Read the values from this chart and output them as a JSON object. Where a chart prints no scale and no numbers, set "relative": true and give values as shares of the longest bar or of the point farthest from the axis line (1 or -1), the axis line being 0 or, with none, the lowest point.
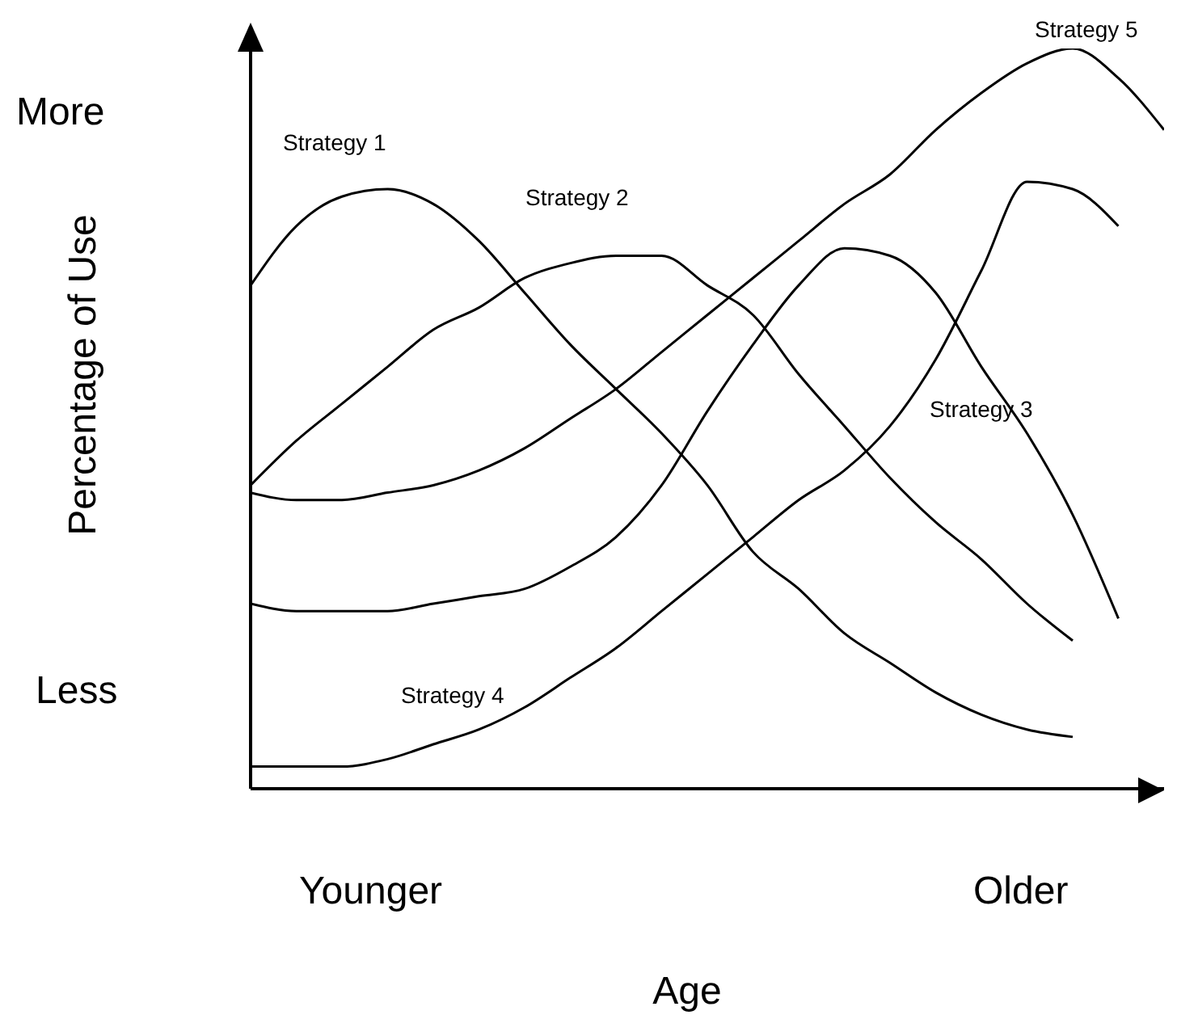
{
  "chart_data": {
    "type": "line",
    "relative": true,
    "xlabel": "Age",
    "ylabel": "Percentage of Use",
    "annotations": [
      "More",
      "Less",
      "Younger",
      "Older"
    ],
    "categories": [
      null,
      null,
      null,
      null,
      null,
      null,
      null,
      null,
      null,
      null,
      null,
      null,
      null,
      null,
      null,
      null,
      null,
      null,
      null,
      null,
      null
    ],
    "series": [
      {
        "name": "Strategy 1",
        "color": "#000000",
        "values": [
          0.68,
          0.76,
          0.8,
          0.81,
          0.79,
          0.74,
          0.67,
          0.6,
          0.54,
          0.48,
          0.41,
          0.32,
          0.27,
          0.21,
          0.17,
          0.13,
          0.1,
          0.08,
          0.07,
          null,
          null
        ]
      },
      {
        "name": "Strategy 2",
        "color": "#000000",
        "values": [
          0.41,
          0.47,
          0.52,
          0.57,
          0.62,
          0.65,
          0.69,
          0.71,
          0.72,
          0.72,
          0.68,
          0.64,
          0.56,
          0.49,
          0.42,
          0.36,
          0.31,
          0.25,
          0.2,
          null,
          null
        ]
      },
      {
        "name": "Strategy 3",
        "color": "#000000",
        "values": [
          0.25,
          0.24,
          0.24,
          0.24,
          0.25,
          0.26,
          0.27,
          0.3,
          0.34,
          0.41,
          0.51,
          0.6,
          0.68,
          0.73,
          0.72,
          0.67,
          0.57,
          0.48,
          0.37,
          0.23,
          null
        ]
      },
      {
        "name": "Strategy 4",
        "color": "#000000",
        "values": [
          0.03,
          0.03,
          0.03,
          0.04,
          0.06,
          0.08,
          0.11,
          0.15,
          0.19,
          0.24,
          0.29,
          0.34,
          0.39,
          0.43,
          0.49,
          0.58,
          0.7,
          0.82,
          0.81,
          0.76,
          null
        ]
      },
      {
        "name": "Strategy 5",
        "color": "#000000",
        "values": [
          0.4,
          0.39,
          0.39,
          0.4,
          0.41,
          0.43,
          0.46,
          0.5,
          0.54,
          0.59,
          0.64,
          0.69,
          0.74,
          0.79,
          0.83,
          0.89,
          0.94,
          0.98,
          1,
          0.96,
          0.89
        ]
      }
    ]
  }
}
